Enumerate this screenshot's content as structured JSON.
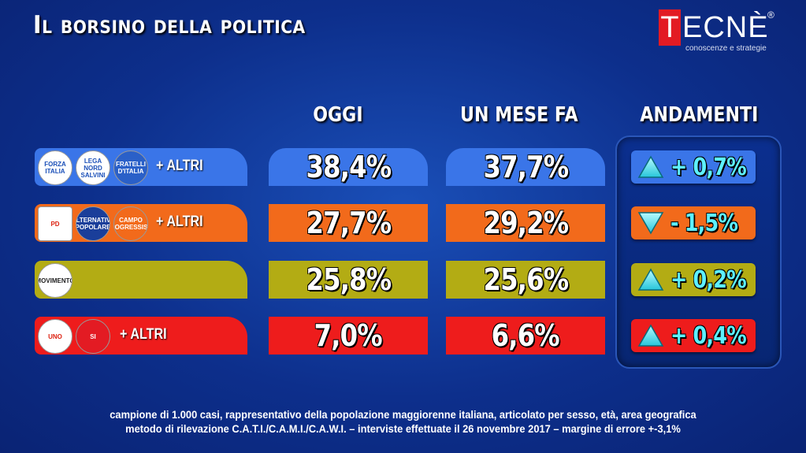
{
  "title": "Il borsino della politica",
  "logo": {
    "mark": "T",
    "word": "ECNÈ",
    "reg": "®",
    "tagline": "conoscenze e strategie"
  },
  "columns": {
    "today": "OGGI",
    "month_ago": "UN MESE FA",
    "trend": "ANDAMENTI"
  },
  "colors": {
    "row1": "#3a75e8",
    "row2": "#f26a1b",
    "row3": "#b3ac14",
    "row4": "#ee1c1c",
    "trend_text": "#5df0ff"
  },
  "rows": [
    {
      "logos": [
        "FORZA ITALIA",
        "LEGA NORD SALVINI",
        "FRATELLI D'ITALIA"
      ],
      "altri": "+ ALTRI",
      "today": "38,4%",
      "month_ago": "37,7%",
      "trend": "+ 0,7%",
      "direction": "up"
    },
    {
      "logos": [
        "PD",
        "ALTERNATIVA POPOLARE",
        "CAMPO PROGRESSISTA"
      ],
      "altri": "+ ALTRI",
      "today": "27,7%",
      "month_ago": "29,2%",
      "trend": "- 1,5%",
      "direction": "down"
    },
    {
      "logos": [
        "MOVIMENTO"
      ],
      "altri": "",
      "today": "25,8%",
      "month_ago": "25,6%",
      "trend": "+ 0,2%",
      "direction": "up"
    },
    {
      "logos": [
        "UNO",
        "SI"
      ],
      "altri": "+ ALTRI",
      "today": "7,0%",
      "month_ago": "6,6%",
      "trend": "+ 0,4%",
      "direction": "up"
    }
  ],
  "chart_data": {
    "type": "table",
    "columns": [
      "OGGI",
      "UN MESE FA",
      "ANDAMENTI"
    ],
    "series": [
      {
        "values": [
          38.4,
          27.7,
          25.8,
          7.0
        ]
      },
      {
        "values": [
          37.7,
          29.2,
          25.6,
          6.6
        ]
      },
      {
        "values": [
          0.7,
          -1.5,
          0.2,
          0.4
        ]
      }
    ]
  },
  "footer": {
    "line1": "campione di 1.000 casi, rappresentativo della popolazione maggiorenne italiana, articolato per sesso, età, area geografica",
    "line2": "metodo di rilevazione C.A.T.I./C.A.M.I./C.A.W.I. – interviste effettuate il 26 novembre 2017 – margine di errore +-3,1%"
  }
}
